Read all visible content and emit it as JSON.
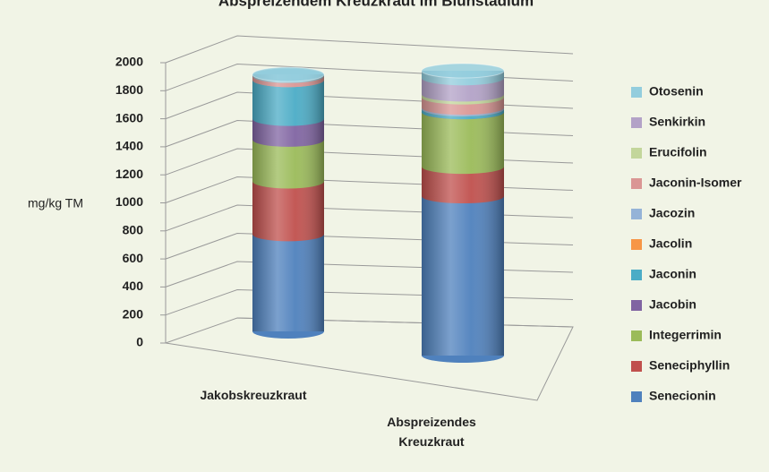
{
  "chart_data": {
    "type": "bar3d-stacked",
    "title": "Abspreizendem Kreuzkraut im Blühstadium",
    "ylabel": "mg/kg TM",
    "categories": [
      "Jakobskreuzkraut",
      "Abspreizendes Kreuzkraut"
    ],
    "ylim": [
      0,
      2000
    ],
    "yticks": [
      0,
      200,
      400,
      600,
      800,
      1000,
      1200,
      1400,
      1600,
      1800,
      2000
    ],
    "grid": true,
    "legend": "right",
    "series": [
      {
        "name": "Senecionin",
        "color": "#4f81bd",
        "values": [
          700,
          1080
        ]
      },
      {
        "name": "Seneciphyllin",
        "color": "#c0504d",
        "values": [
          380,
          200
        ]
      },
      {
        "name": "Integerrimin",
        "color": "#9bbb59",
        "values": [
          300,
          370
        ]
      },
      {
        "name": "Jacobin",
        "color": "#8064a2",
        "values": [
          150,
          0
        ]
      },
      {
        "name": "Jaconin",
        "color": "#4bacc6",
        "values": [
          280,
          20
        ]
      },
      {
        "name": "Jacolin",
        "color": "#f79646",
        "values": [
          0,
          0
        ]
      },
      {
        "name": "Jacozin",
        "color": "#95b3d7",
        "values": [
          0,
          10
        ]
      },
      {
        "name": "Jaconin-Isomer",
        "color": "#da9694",
        "values": [
          30,
          70
        ]
      },
      {
        "name": "Erucifolin",
        "color": "#c3d69b",
        "values": [
          0,
          20
        ]
      },
      {
        "name": "Senkirkin",
        "color": "#b3a2c7",
        "values": [
          0,
          110
        ]
      },
      {
        "name": "Otosenin",
        "color": "#93cddd",
        "values": [
          10,
          50
        ]
      }
    ]
  }
}
